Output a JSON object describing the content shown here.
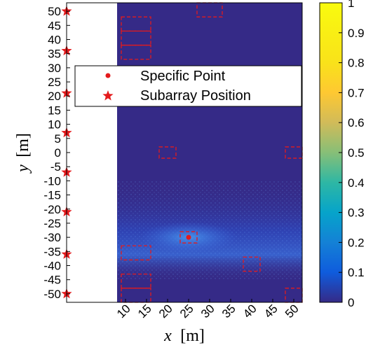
{
  "chart_data": {
    "type": "heatmap",
    "title": "",
    "xlabel": {
      "var": "x",
      "unit": "[m]"
    },
    "ylabel": {
      "var": "y",
      "unit": "[m]"
    },
    "xlim": [
      -4,
      52
    ],
    "ylim": [
      -53,
      53
    ],
    "x_ticks": [
      10,
      15,
      20,
      25,
      30,
      35,
      40,
      45,
      50
    ],
    "y_ticks": [
      50,
      45,
      40,
      35,
      30,
      25,
      20,
      15,
      10,
      5,
      0,
      -5,
      -10,
      -15,
      -20,
      -25,
      -30,
      -35,
      -40,
      -45,
      -50
    ],
    "colorbar": {
      "range": [
        0,
        1
      ],
      "ticks": [
        0,
        0.1,
        0.2,
        0.3,
        0.4,
        0.5,
        0.6,
        0.7,
        0.8,
        0.9,
        1
      ],
      "colormap": "parula"
    },
    "map_region": {
      "x": [
        8,
        52
      ],
      "y": [
        -53,
        53
      ],
      "background_level": 0.05
    },
    "high_intensity_band": {
      "y_range": [
        -45,
        -10
      ],
      "peak_y": -30,
      "peak_level": 0.25
    },
    "specific_point": {
      "x": 25,
      "y": -30,
      "color": "#e41a1c"
    },
    "subarray_positions": [
      {
        "x": -4,
        "y": 50
      },
      {
        "x": -4,
        "y": 36
      },
      {
        "x": -4,
        "y": 21
      },
      {
        "x": -4,
        "y": 7
      },
      {
        "x": -4,
        "y": -7
      },
      {
        "x": -4,
        "y": -21
      },
      {
        "x": -4,
        "y": -36
      },
      {
        "x": -4,
        "y": -50
      }
    ],
    "dashed_regions": [
      {
        "x": [
          9,
          16
        ],
        "y": [
          43,
          48
        ]
      },
      {
        "x": [
          9,
          16
        ],
        "y": [
          38,
          43
        ]
      },
      {
        "x": [
          9,
          16
        ],
        "y": [
          33,
          38
        ]
      },
      {
        "x": [
          27,
          33
        ],
        "y": [
          48,
          53
        ]
      },
      {
        "x": [
          18,
          22
        ],
        "y": [
          -2,
          2
        ]
      },
      {
        "x": [
          48,
          52
        ],
        "y": [
          -2,
          2
        ]
      },
      {
        "x": [
          23,
          27
        ],
        "y": [
          -32,
          -28
        ]
      },
      {
        "x": [
          9,
          16
        ],
        "y": [
          -38,
          -33
        ]
      },
      {
        "x": [
          9,
          16
        ],
        "y": [
          -48,
          -43
        ]
      },
      {
        "x": [
          9,
          16
        ],
        "y": [
          -53,
          -48
        ]
      },
      {
        "x": [
          38,
          42
        ],
        "y": [
          -42,
          -37
        ]
      },
      {
        "x": [
          48,
          52
        ],
        "y": [
          -53,
          -48
        ]
      }
    ],
    "legend": {
      "position": "upper-left",
      "entries": [
        {
          "label": "Specific Point",
          "marker": "dot",
          "color": "#e41a1c"
        },
        {
          "label": "Subarray Position",
          "marker": "star",
          "color": "#e41a1c"
        }
      ]
    }
  }
}
